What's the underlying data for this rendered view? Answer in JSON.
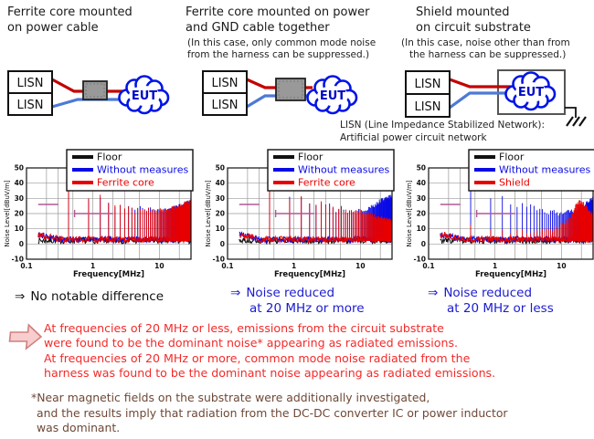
{
  "columns": [
    {
      "title_lines": [
        "Ferrite core mounted",
        "on power cable"
      ],
      "note_lines": [],
      "conclusion": {
        "arrow": "⇒",
        "lines": [
          "No notable difference"
        ],
        "color": "#111111"
      }
    },
    {
      "title_lines": [
        "Ferrite core mounted on power",
        "and GND cable together"
      ],
      "note_lines": [
        "(In this case, only common mode noise",
        "from the harness can be suppressed.)"
      ],
      "conclusion": {
        "arrow": "⇒",
        "lines": [
          "Noise reduced",
          "at 20 MHz or more"
        ],
        "color": "#1b1bd0"
      }
    },
    {
      "title_lines": [
        "Shield mounted",
        "on circuit substrate"
      ],
      "note_lines": [
        "(In this case, noise other than from",
        "the harness can be suppressed.)"
      ],
      "conclusion": {
        "arrow": "⇒",
        "lines": [
          "Noise reduced",
          "at 20 MHz or less"
        ],
        "color": "#1b1bd0"
      }
    }
  ],
  "diagram_labels": {
    "lisn": "LISN",
    "eut": "EUT"
  },
  "lisn_caption_lines": [
    "LISN (Line Impedance Stabilized Network):",
    "Artificial power circuit network"
  ],
  "finding_lines": [
    "At frequencies of 20 MHz or less, emissions from the circuit substrate",
    "were found to be the dominant noise* appearing as radiated emissions.",
    "At frequencies of 20 MHz or more, common mode noise radiated from the",
    "harness was found to be the dominant noise appearing as radiated emissions."
  ],
  "footnote_lines": [
    "*Near magnetic fields on the substrate were additionally investigated,",
    "and the results imply that radiation from the DC-DC converter IC or power inductor",
    "was dominant."
  ],
  "colors": {
    "conclusion_blue": "#1b1bd0",
    "finding_red": "#f42a2a",
    "footnote_brown": "#6e4837",
    "limit_line": "#b05898",
    "wire_power": "#c40000",
    "wire_gnd": "#4d79d6",
    "eut_blue": "#0014e6",
    "ferrite_gray": "#999999"
  },
  "chart_data": [
    {
      "type": "line",
      "name": "ferrite-on-power-cable",
      "xlabel": "Frequency[MHz]",
      "ylabel": "Noise Level[dBuV/m]",
      "xscale": "log",
      "xlim": [
        0.1,
        30
      ],
      "ylim": [
        -10,
        50
      ],
      "xticks": [
        0.1,
        1,
        10
      ],
      "yticks": [
        -10,
        0,
        10,
        20,
        30,
        40,
        50
      ],
      "xgrid": [
        0.2,
        0.3,
        0.5,
        1,
        2,
        3,
        5,
        10,
        20
      ],
      "grid": true,
      "legend_position": "top",
      "limit_lines": [
        {
          "x1": 0.15,
          "x2": 0.3,
          "y": 26
        },
        {
          "x1": 0.53,
          "x2": 2.0,
          "y": 20
        }
      ],
      "series": [
        {
          "name": "Floor",
          "color": "#111111",
          "baseline_db": 2.2
        },
        {
          "name": "Without measures",
          "color": "#0a0ae6",
          "baseline_db": 3,
          "baseline_start_db": 6,
          "comb_mhz": 0.43,
          "envelope": [
            [
              0.43,
              44
            ],
            [
              0.86,
              30
            ],
            [
              1.3,
              32
            ],
            [
              1.7,
              27
            ],
            [
              2.1,
              24
            ],
            [
              2.6,
              27
            ],
            [
              3.1,
              24
            ],
            [
              3.7,
              26
            ],
            [
              4.3,
              22
            ],
            [
              5.2,
              24
            ],
            [
              6.2,
              21
            ],
            [
              7.2,
              23
            ],
            [
              8.6,
              21
            ],
            [
              10,
              22
            ],
            [
              13,
              22
            ],
            [
              17,
              24
            ],
            [
              21,
              25
            ],
            [
              25,
              27
            ],
            [
              30,
              28
            ]
          ]
        },
        {
          "name": "Ferrite core",
          "color": "#e80000",
          "baseline_db": 3,
          "baseline_start_db": 6,
          "comb_mhz": 0.43,
          "envelope": [
            [
              0.43,
              44
            ],
            [
              0.86,
              30
            ],
            [
              1.3,
              32
            ],
            [
              1.7,
              27
            ],
            [
              2.1,
              24
            ],
            [
              2.6,
              27
            ],
            [
              3.1,
              24
            ],
            [
              3.7,
              26
            ],
            [
              4.3,
              22
            ],
            [
              5.2,
              24
            ],
            [
              6.2,
              21
            ],
            [
              7.2,
              23
            ],
            [
              8.6,
              21
            ],
            [
              10,
              22
            ],
            [
              13,
              22
            ],
            [
              17,
              24
            ],
            [
              21,
              25
            ],
            [
              25,
              27
            ],
            [
              30,
              28
            ]
          ]
        }
      ]
    },
    {
      "type": "line",
      "name": "ferrite-on-power-and-gnd",
      "xlabel": "Frequency[MHz]",
      "ylabel": "Noise Level[dBuV/m]",
      "xscale": "log",
      "xlim": [
        0.1,
        30
      ],
      "ylim": [
        -10,
        50
      ],
      "xticks": [
        0.1,
        1,
        10
      ],
      "yticks": [
        -10,
        0,
        10,
        20,
        30,
        40,
        50
      ],
      "xgrid": [
        0.2,
        0.3,
        0.5,
        1,
        2,
        3,
        5,
        10,
        20
      ],
      "grid": true,
      "legend_position": "top",
      "limit_lines": [
        {
          "x1": 0.15,
          "x2": 0.3,
          "y": 26
        },
        {
          "x1": 0.53,
          "x2": 2.0,
          "y": 20
        }
      ],
      "series": [
        {
          "name": "Floor",
          "color": "#111111",
          "baseline_db": 2.2
        },
        {
          "name": "Without measures",
          "color": "#0a0ae6",
          "baseline_db": 3,
          "baseline_start_db": 6,
          "comb_mhz": 0.43,
          "envelope": [
            [
              0.43,
              44
            ],
            [
              0.86,
              30
            ],
            [
              1.3,
              32
            ],
            [
              1.7,
              27
            ],
            [
              2.1,
              24
            ],
            [
              2.6,
              27
            ],
            [
              3.1,
              24
            ],
            [
              3.7,
              26
            ],
            [
              4.3,
              22
            ],
            [
              5.2,
              24
            ],
            [
              6.2,
              21
            ],
            [
              7.2,
              23
            ],
            [
              8.6,
              21
            ],
            [
              10,
              22
            ],
            [
              13,
              23
            ],
            [
              17,
              26
            ],
            [
              21,
              29
            ],
            [
              25,
              31
            ],
            [
              30,
              31
            ]
          ]
        },
        {
          "name": "Ferrite core",
          "color": "#e80000",
          "baseline_db": 3,
          "baseline_start_db": 6,
          "comb_mhz": 0.43,
          "envelope": [
            [
              0.43,
              44
            ],
            [
              0.86,
              30
            ],
            [
              1.3,
              32
            ],
            [
              1.7,
              27
            ],
            [
              2.1,
              24
            ],
            [
              2.6,
              27
            ],
            [
              3.1,
              24
            ],
            [
              3.7,
              26
            ],
            [
              4.3,
              22
            ],
            [
              5.2,
              24
            ],
            [
              6.2,
              21
            ],
            [
              7.2,
              23
            ],
            [
              8.6,
              21
            ],
            [
              10,
              22
            ],
            [
              13,
              20
            ],
            [
              17,
              18
            ],
            [
              21,
              17
            ],
            [
              25,
              16
            ],
            [
              30,
              15
            ]
          ]
        }
      ]
    },
    {
      "type": "line",
      "name": "shield-on-substrate",
      "xlabel": "Frequency[MHz]",
      "ylabel": "Noise Level[dBuV/m]",
      "xscale": "log",
      "xlim": [
        0.1,
        30
      ],
      "ylim": [
        -10,
        50
      ],
      "xticks": [
        0.1,
        1,
        10
      ],
      "yticks": [
        -10,
        0,
        10,
        20,
        30,
        40,
        50
      ],
      "xgrid": [
        0.2,
        0.3,
        0.5,
        1,
        2,
        3,
        5,
        10,
        20
      ],
      "grid": true,
      "legend_position": "top",
      "limit_lines": [
        {
          "x1": 0.15,
          "x2": 0.3,
          "y": 26
        },
        {
          "x1": 0.53,
          "x2": 2.0,
          "y": 20
        }
      ],
      "series": [
        {
          "name": "Floor",
          "color": "#111111",
          "baseline_db": 2.2
        },
        {
          "name": "Without measures",
          "color": "#0a0ae6",
          "baseline_db": 3,
          "baseline_start_db": 6,
          "comb_mhz": 0.43,
          "envelope": [
            [
              0.43,
              44
            ],
            [
              0.86,
              29
            ],
            [
              1.3,
              32
            ],
            [
              1.7,
              27
            ],
            [
              2.1,
              23
            ],
            [
              2.6,
              26
            ],
            [
              3.1,
              24
            ],
            [
              3.7,
              25
            ],
            [
              4.3,
              21
            ],
            [
              5.2,
              23
            ],
            [
              6.2,
              20
            ],
            [
              7.2,
              22
            ],
            [
              8.6,
              20
            ],
            [
              10,
              21
            ],
            [
              13,
              21
            ],
            [
              17,
              22
            ],
            [
              21,
              24
            ],
            [
              25,
              28
            ],
            [
              30,
              30
            ]
          ]
        },
        {
          "name": "Shield",
          "color": "#e80000",
          "baseline_db": 3,
          "baseline_start_db": 6,
          "comb_mhz": 0.43,
          "envelope": [
            [
              0.43,
              12
            ],
            [
              0.9,
              9
            ],
            [
              1.5,
              8
            ],
            [
              3,
              8
            ],
            [
              6,
              9
            ],
            [
              10,
              12
            ],
            [
              13,
              16
            ],
            [
              15,
              21
            ],
            [
              17,
              26
            ],
            [
              19,
              28
            ],
            [
              21,
              27
            ],
            [
              23,
              25
            ],
            [
              26,
              22
            ],
            [
              30,
              19
            ]
          ]
        }
      ]
    }
  ]
}
